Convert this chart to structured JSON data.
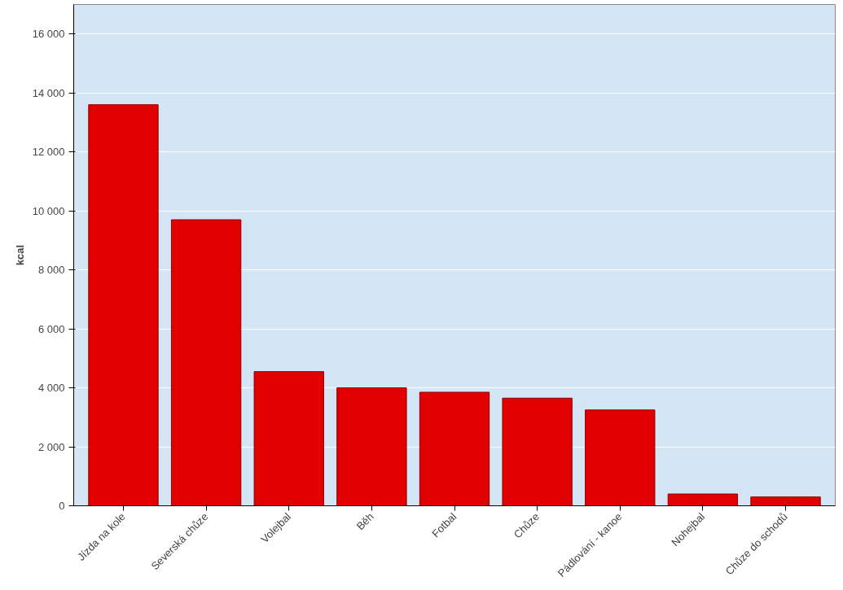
{
  "chart_data": {
    "type": "bar",
    "ylabel": "kcal",
    "categories": [
      "Jízda na kole",
      "Severská chůze",
      "Volejbal",
      "Běh",
      "Fotbal",
      "Chůze",
      "Pádlování - kanoe",
      "Nohejbal",
      "Chůze do schodů"
    ],
    "values": [
      13600,
      9700,
      4550,
      4000,
      3850,
      3650,
      3250,
      400,
      300
    ],
    "color": "#e00000",
    "ylim": [
      0,
      17000
    ],
    "yticks": [
      {
        "value": 0,
        "label": "0"
      },
      {
        "value": 2000,
        "label": "2 000"
      },
      {
        "value": 4000,
        "label": "4 000"
      },
      {
        "value": 6000,
        "label": "6 000"
      },
      {
        "value": 8000,
        "label": "8 000"
      },
      {
        "value": 10000,
        "label": "10 000"
      },
      {
        "value": 12000,
        "label": "12 000"
      },
      {
        "value": 14000,
        "label": "14 000"
      },
      {
        "value": 16000,
        "label": "16 000"
      }
    ],
    "grid": "y"
  }
}
